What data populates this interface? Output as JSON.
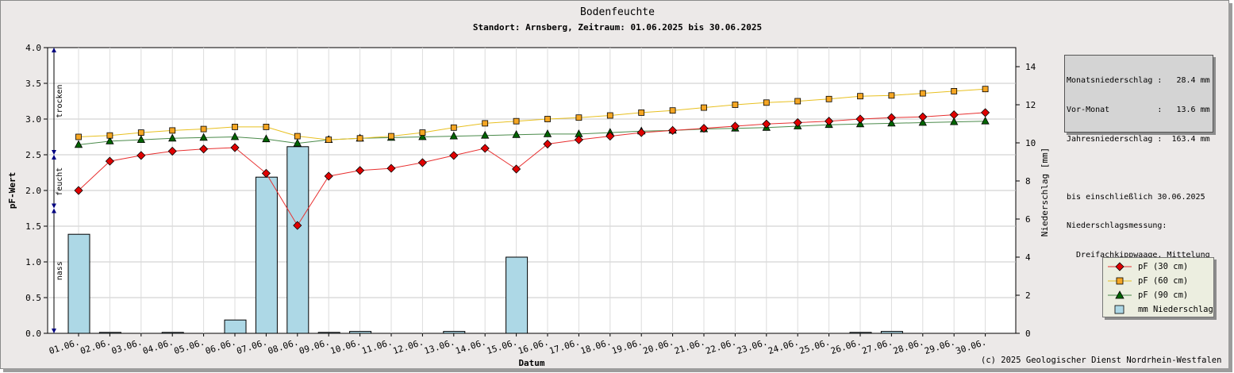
{
  "chart_data": {
    "type": "bar+line",
    "title": "Bodenfeuchte",
    "subtitle": "Standort: Arnsberg, Zeitraum: 01.06.2025 bis 30.06.2025",
    "xlabel": "Datum",
    "ylabel": "pF-Wert",
    "y2label": "Niederschlag [mm]",
    "ylim": [
      0,
      4.0
    ],
    "y2lim": [
      0,
      15
    ],
    "yticks": [
      "0.0",
      "0.5",
      "1.0",
      "1.5",
      "2.0",
      "2.5",
      "3.0",
      "3.5",
      "4.0"
    ],
    "y2ticks": [
      "0",
      "2",
      "4",
      "6",
      "8",
      "10",
      "12",
      "14"
    ],
    "categories": [
      "01.06.",
      "02.06.",
      "03.06.",
      "04.06.",
      "05.06.",
      "06.06.",
      "07.06.",
      "08.06.",
      "09.06.",
      "10.06.",
      "11.06.",
      "12.06.",
      "13.06.",
      "14.06.",
      "15.06.",
      "16.06.",
      "17.06.",
      "18.06.",
      "19.06.",
      "20.06.",
      "21.06.",
      "22.06.",
      "23.06.",
      "24.06.",
      "25.06.",
      "26.06.",
      "27.06.",
      "28.06.",
      "29.06.",
      "30.06."
    ],
    "grid": true,
    "legend_position": "bottom-right",
    "zones": [
      {
        "label": "trocken",
        "from": 2.5,
        "to": 4.0
      },
      {
        "label": "feucht",
        "from": 1.75,
        "to": 2.5
      },
      {
        "label": "nass",
        "from": 0.0,
        "to": 1.75
      }
    ],
    "series": [
      {
        "name": "pF (30 cm)",
        "kind": "line",
        "marker": "diamond",
        "color": "#e00000",
        "line_color": "#e83030",
        "values": [
          2.0,
          2.41,
          2.49,
          2.55,
          2.58,
          2.6,
          2.24,
          1.51,
          2.2,
          2.28,
          2.31,
          2.39,
          2.49,
          2.59,
          2.3,
          2.65,
          2.71,
          2.76,
          2.81,
          2.84,
          2.87,
          2.9,
          2.93,
          2.95,
          2.97,
          3.0,
          3.02,
          3.03,
          3.06,
          3.09
        ]
      },
      {
        "name": "pF (60 cm)",
        "kind": "line",
        "marker": "square",
        "color": "#f5a623",
        "line_color": "#e8c020",
        "values": [
          2.75,
          2.77,
          2.81,
          2.84,
          2.86,
          2.89,
          2.89,
          2.76,
          2.71,
          2.73,
          2.76,
          2.81,
          2.88,
          2.94,
          2.97,
          3.0,
          3.02,
          3.05,
          3.09,
          3.12,
          3.16,
          3.2,
          3.23,
          3.25,
          3.28,
          3.32,
          3.33,
          3.36,
          3.39,
          3.42
        ]
      },
      {
        "name": "pF (90 cm)",
        "kind": "line",
        "marker": "triangle",
        "color": "#006400",
        "line_color": "#4a8a4a",
        "values": [
          2.64,
          2.69,
          2.71,
          2.73,
          2.74,
          2.75,
          2.72,
          2.66,
          2.71,
          2.73,
          2.74,
          2.75,
          2.76,
          2.77,
          2.78,
          2.79,
          2.79,
          2.81,
          2.83,
          2.84,
          2.86,
          2.87,
          2.88,
          2.9,
          2.92,
          2.93,
          2.94,
          2.95,
          2.96,
          2.97
        ]
      },
      {
        "name": "mm  Niederschlag",
        "kind": "bar",
        "axis": "right",
        "color": "#add8e6",
        "values": [
          5.2,
          0.05,
          0,
          0.05,
          0,
          0.7,
          8.2,
          9.8,
          0.05,
          0.1,
          0,
          0,
          0.1,
          0,
          4.0,
          0,
          0,
          0,
          0,
          0,
          0,
          0,
          0,
          0,
          0,
          0.05,
          0.1,
          0,
          0,
          0
        ]
      }
    ]
  },
  "info": {
    "lines": [
      "Monatsniederschlag :   28.4 mm",
      "Vor-Monat          :   13.6 mm",
      "Jahresniederschlag :  163.4 mm",
      "",
      "bis einschließlich 30.06.2025",
      "Niederschlagsmessung:",
      "  Dreifachkippwaage, Mittelung"
    ]
  },
  "copyright": "(c) 2025 Geologischer Dienst Nordrhein-Westfalen"
}
